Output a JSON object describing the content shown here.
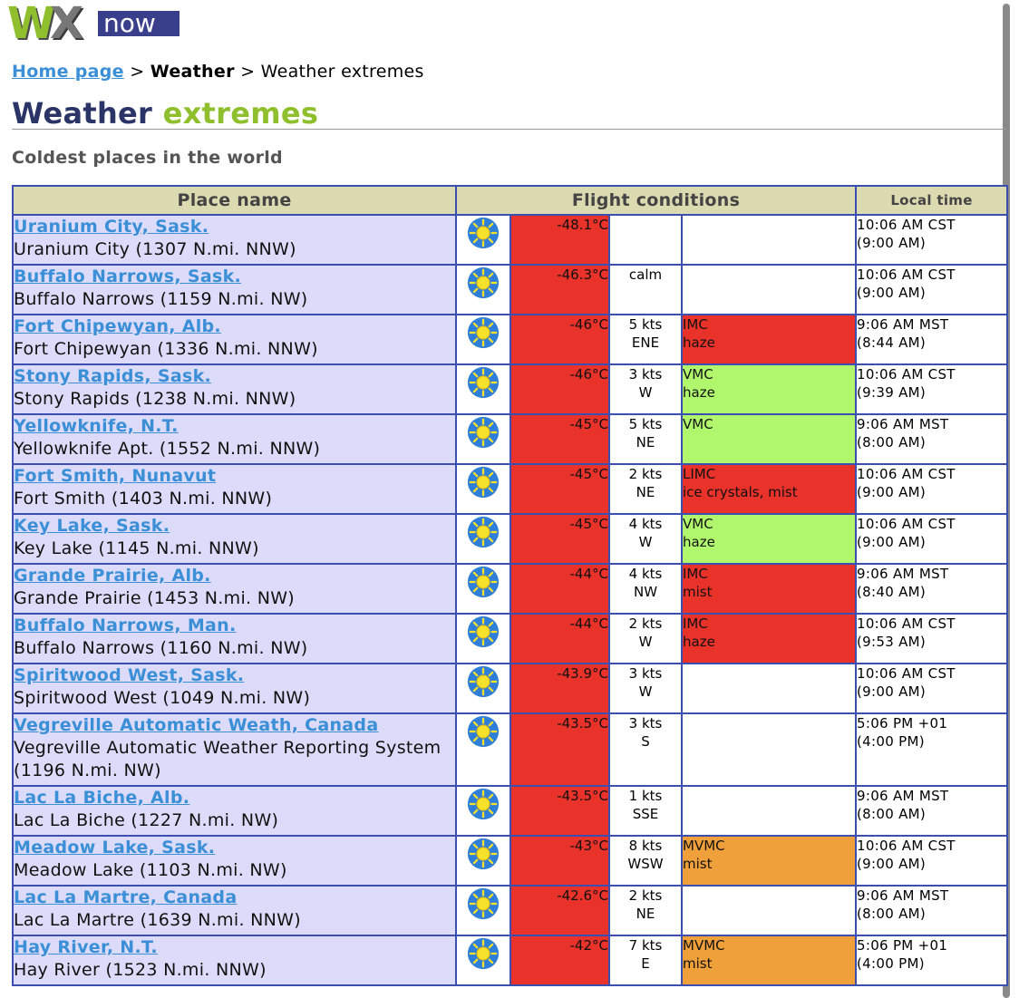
{
  "logo": {
    "wx": "WX",
    "w": "W",
    "x": "X",
    "now": "now"
  },
  "breadcrumb": {
    "home": "Home page",
    "sep1": " > ",
    "section": "Weather",
    "sep2": " > ",
    "current": "Weather extremes"
  },
  "title": {
    "part1": "Weather",
    "part2": "extremes"
  },
  "subtitle": "Coldest places in the world",
  "table": {
    "headers": {
      "place": "Place name",
      "flight": "Flight conditions",
      "time": "Local time"
    },
    "rows": [
      {
        "name": "Uranium City, Sask.",
        "sub": "Uranium City (1307 N.mi. NNW)",
        "temp": "-48.1°C",
        "wind": "",
        "wind_dir": "",
        "cond": "",
        "cond_detail": "",
        "cond_color": "none",
        "time": "10:06 AM CST",
        "time2": "(9:00 AM)"
      },
      {
        "name": "Buffalo Narrows, Sask.",
        "sub": "Buffalo Narrows (1159 N.mi. NW)",
        "temp": "-46.3°C",
        "wind": "calm",
        "wind_dir": "",
        "cond": "",
        "cond_detail": "",
        "cond_color": "none",
        "time": "10:06 AM CST",
        "time2": "(9:00 AM)"
      },
      {
        "name": "Fort Chipewyan, Alb.",
        "sub": "Fort Chipewyan (1336 N.mi. NNW)",
        "temp": "-46°C",
        "wind": "5 kts",
        "wind_dir": "ENE",
        "cond": "IMC",
        "cond_detail": "haze",
        "cond_color": "red",
        "time": "9:06 AM MST",
        "time2": "(8:44 AM)"
      },
      {
        "name": "Stony Rapids, Sask.",
        "sub": "Stony Rapids (1238 N.mi. NNW)",
        "temp": "-46°C",
        "wind": "3 kts",
        "wind_dir": "W",
        "cond": "VMC",
        "cond_detail": "haze",
        "cond_color": "green",
        "time": "10:06 AM CST",
        "time2": "(9:39 AM)"
      },
      {
        "name": "Yellowknife, N.T.",
        "sub": "Yellowknife Apt. (1552 N.mi. NNW)",
        "temp": "-45°C",
        "wind": "5 kts",
        "wind_dir": "NE",
        "cond": "VMC",
        "cond_detail": "",
        "cond_color": "green",
        "time": "9:06 AM MST",
        "time2": "(8:00 AM)"
      },
      {
        "name": "Fort Smith, Nunavut",
        "sub": "Fort Smith (1403 N.mi. NNW)",
        "temp": "-45°C",
        "wind": "2 kts",
        "wind_dir": "NE",
        "cond": "LIMC",
        "cond_detail": "ice crystals, mist",
        "cond_color": "red",
        "time": "10:06 AM CST",
        "time2": "(9:00 AM)"
      },
      {
        "name": "Key Lake, Sask.",
        "sub": "Key Lake (1145 N.mi. NNW)",
        "temp": "-45°C",
        "wind": "4 kts",
        "wind_dir": "W",
        "cond": "VMC",
        "cond_detail": "haze",
        "cond_color": "green",
        "time": "10:06 AM CST",
        "time2": "(9:00 AM)"
      },
      {
        "name": "Grande Prairie, Alb.",
        "sub": "Grande Prairie (1453 N.mi. NW)",
        "temp": "-44°C",
        "wind": "4 kts",
        "wind_dir": "NW",
        "cond": "IMC",
        "cond_detail": "mist",
        "cond_color": "red",
        "time": "9:06 AM MST",
        "time2": "(8:40 AM)"
      },
      {
        "name": "Buffalo Narrows, Man.",
        "sub": "Buffalo Narrows (1160 N.mi. NW)",
        "temp": "-44°C",
        "wind": "2 kts",
        "wind_dir": "W",
        "cond": "IMC",
        "cond_detail": "haze",
        "cond_color": "red",
        "time": "10:06 AM CST",
        "time2": "(9:53 AM)"
      },
      {
        "name": "Spiritwood West, Sask.",
        "sub": "Spiritwood West (1049 N.mi. NW)",
        "temp": "-43.9°C",
        "wind": "3 kts",
        "wind_dir": "W",
        "cond": "",
        "cond_detail": "",
        "cond_color": "none",
        "time": "10:06 AM CST",
        "time2": "(9:00 AM)"
      },
      {
        "name": "Vegreville Automatic Weath, Canada",
        "sub": "Vegreville Automatic Weather Reporting System (1196 N.mi. NW)",
        "temp": "-43.5°C",
        "wind": "3 kts",
        "wind_dir": "S",
        "cond": "",
        "cond_detail": "",
        "cond_color": "none",
        "time": "5:06 PM +01",
        "time2": "(4:00 PM)",
        "tall": true
      },
      {
        "name": "Lac La Biche, Alb.",
        "sub": "Lac La Biche (1227 N.mi. NW)",
        "temp": "-43.5°C",
        "wind": "1 kts",
        "wind_dir": "SSE",
        "cond": "",
        "cond_detail": "",
        "cond_color": "none",
        "time": "9:06 AM MST",
        "time2": "(8:00 AM)"
      },
      {
        "name": "Meadow Lake, Sask.",
        "sub": "Meadow Lake (1103 N.mi. NW)",
        "temp": "-43°C",
        "wind": "8 kts",
        "wind_dir": "WSW",
        "cond": "MVMC",
        "cond_detail": "mist",
        "cond_color": "orange",
        "time": "10:06 AM CST",
        "time2": "(9:00 AM)"
      },
      {
        "name": "Lac La Martre, Canada",
        "sub": "Lac La Martre (1639 N.mi. NNW)",
        "temp": "-42.6°C",
        "wind": "2 kts",
        "wind_dir": "NE",
        "cond": "",
        "cond_detail": "",
        "cond_color": "none",
        "time": "9:06 AM MST",
        "time2": "(8:00 AM)"
      },
      {
        "name": "Hay River, N.T.",
        "sub": "Hay River (1523 N.mi. NNW)",
        "temp": "-42°C",
        "wind": "7 kts",
        "wind_dir": "E",
        "cond": "MVMC",
        "cond_detail": "mist",
        "cond_color": "orange",
        "time": "5:06 PM +01",
        "time2": "(4:00 PM)"
      }
    ]
  },
  "icons": {
    "weather": "sun-icon"
  },
  "colors": {
    "cold": "#e8322a",
    "vmc": "#b1f76d",
    "mvmc": "#f0a03a",
    "imc": "#e8322a",
    "link": "#3a8fd6",
    "header": "#dcdab0",
    "place_bg": "#dcdcfa"
  }
}
